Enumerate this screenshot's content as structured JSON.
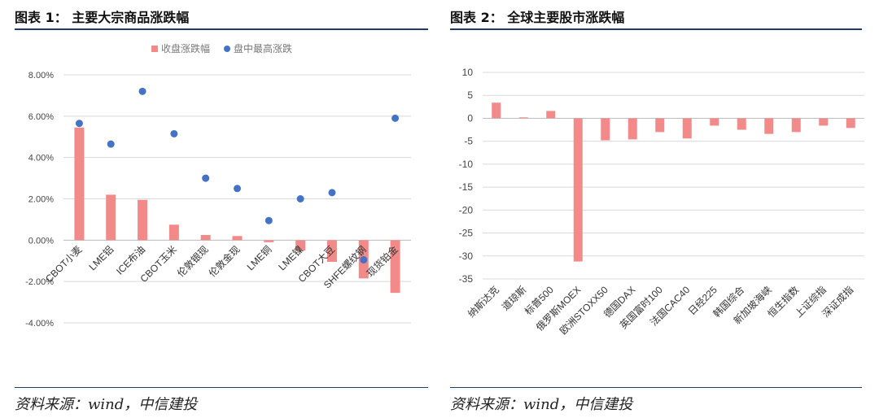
{
  "left": {
    "title": "图表 1：  主要大宗商品涨跌幅",
    "source": "资料来源：wind，中信建投",
    "chart_data": {
      "type": "bar+scatter",
      "categories": [
        "CBOT小麦",
        "LME铝",
        "ICE布油",
        "CBOT玉米",
        "伦敦银现",
        "伦敦金现",
        "LME铜",
        "LME镍",
        "CBOT大豆",
        "SHFE螺纹钢",
        "现货铂金"
      ],
      "series": [
        {
          "name": "收盘涨跌幅",
          "kind": "bar",
          "color": "#f28a8a",
          "values": [
            5.45,
            2.2,
            1.95,
            0.75,
            0.25,
            0.2,
            -0.1,
            -0.5,
            -1.05,
            -1.85,
            -2.55
          ]
        },
        {
          "name": "盘中最高涨跌",
          "kind": "scatter",
          "color": "#4472c4",
          "values": [
            5.65,
            4.65,
            7.2,
            5.15,
            3.0,
            2.5,
            0.95,
            2.0,
            2.3,
            -0.95,
            5.9
          ]
        }
      ],
      "ylim": [
        -4,
        8
      ],
      "yticks": [
        "-4.00%",
        "-2.00%",
        "0.00%",
        "2.00%",
        "4.00%",
        "6.00%",
        "8.00%"
      ],
      "legend": "top-center",
      "grid": true
    }
  },
  "right": {
    "title": "图表 2：  全球主要股市涨跌幅",
    "source": "资料来源：wind，中信建投",
    "chart_data": {
      "type": "bar",
      "categories": [
        "纳斯达克",
        "道琼斯",
        "标普500",
        "俄罗斯MOEX",
        "欧洲STOXX50",
        "德国DAX",
        "英国富时100",
        "法国CAC40",
        "日经225",
        "韩国综合",
        "新加坡海峡",
        "恒生指数",
        "上证综指",
        "深证成指"
      ],
      "values": [
        3.4,
        0.2,
        1.6,
        -31.2,
        -4.8,
        -4.6,
        -3.0,
        -4.4,
        -1.6,
        -2.5,
        -3.4,
        -3.0,
        -1.6,
        -2.1
      ],
      "color": "#f28a8a",
      "ylim": [
        -35,
        10
      ],
      "yticks": [
        "10",
        "5",
        "0",
        "-5",
        "-10",
        "-15",
        "-20",
        "-25",
        "-30",
        "-35"
      ],
      "grid": true
    }
  }
}
